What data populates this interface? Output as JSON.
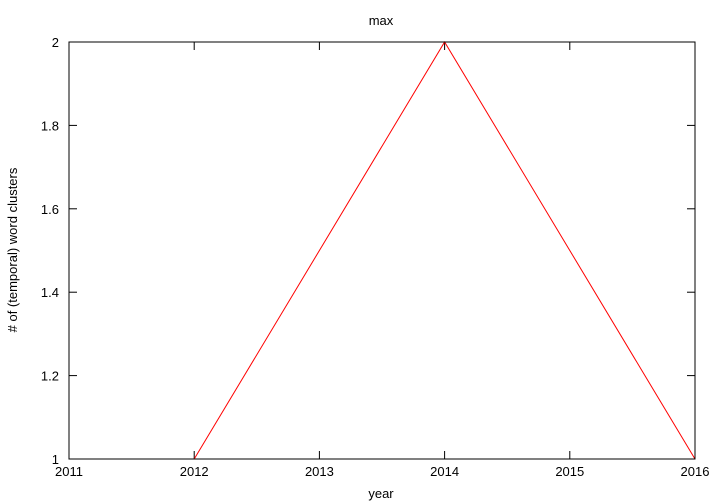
{
  "chart_data": {
    "type": "line",
    "title": "max",
    "xlabel": "year",
    "ylabel": "# of (temporal) word clusters",
    "xlim": [
      2011,
      2016
    ],
    "ylim": [
      1,
      2
    ],
    "x_ticks": [
      "2011",
      "2012",
      "2013",
      "2014",
      "2015",
      "2016"
    ],
    "y_ticks": [
      "1",
      "1.2",
      "1.4",
      "1.6",
      "1.8",
      "2"
    ],
    "grid": false,
    "legend": "none",
    "series": [
      {
        "color": "#ff0000",
        "x": [
          2011,
          2012,
          2013,
          2014,
          2015,
          2016
        ],
        "y": [
          1,
          1,
          1.5,
          2,
          1.5,
          1
        ]
      }
    ]
  }
}
